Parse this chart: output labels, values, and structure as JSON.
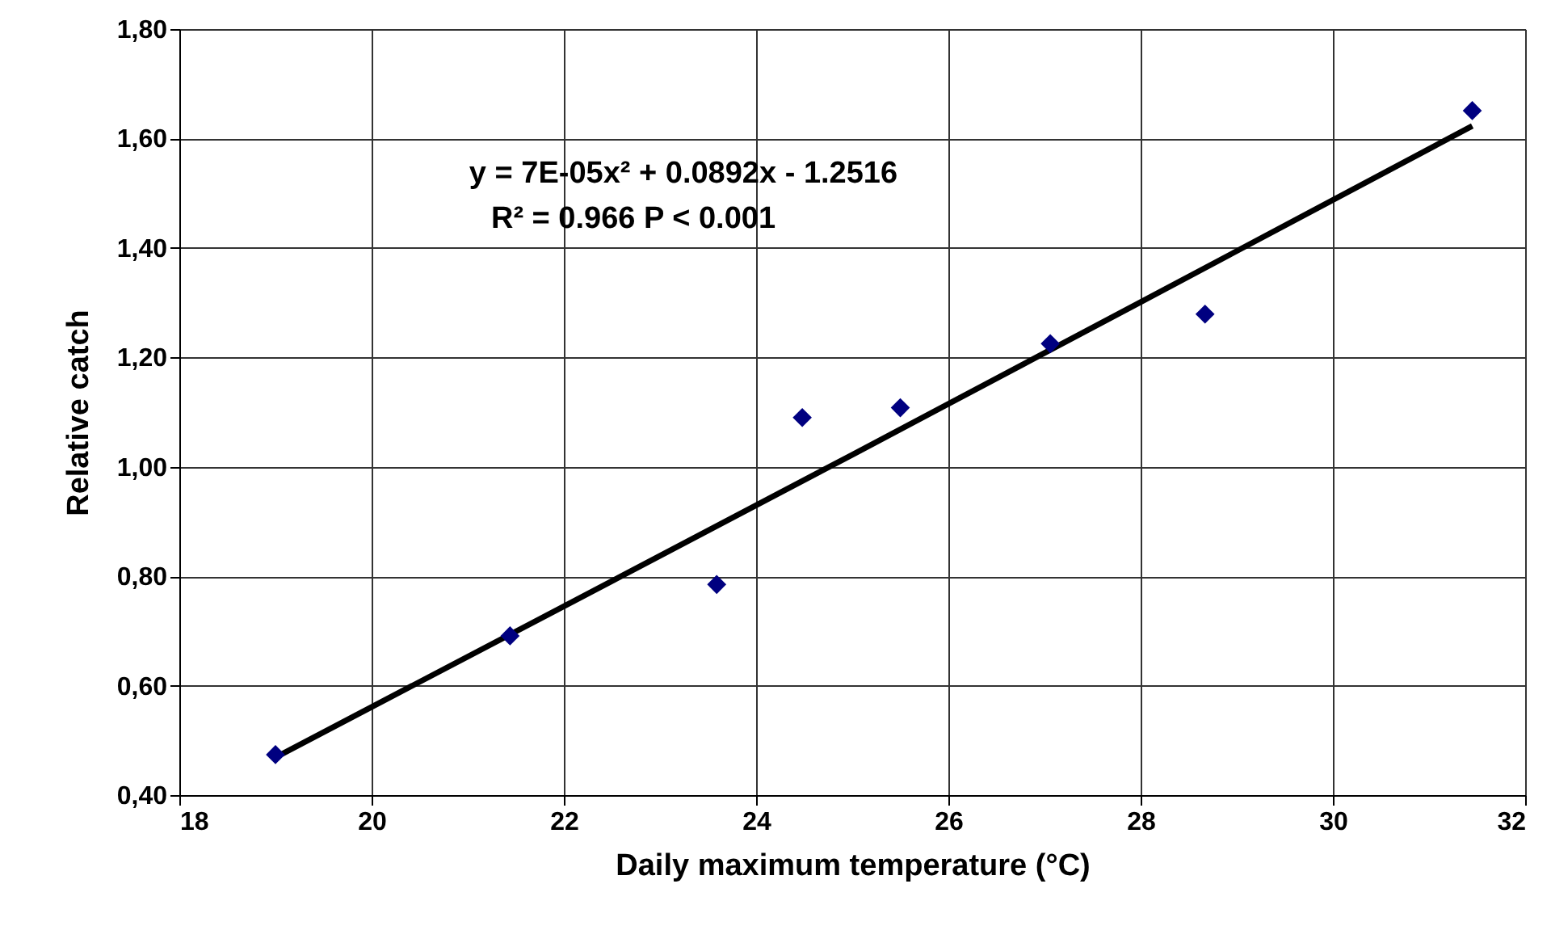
{
  "chart_data": {
    "type": "scatter",
    "xlabel": "Daily maximum temperature (°C)",
    "ylabel": "Relative catch",
    "xlim": [
      18,
      32
    ],
    "xticks": [
      18,
      20,
      22,
      24,
      26,
      28,
      30,
      32
    ],
    "ylim": [
      0.4,
      1.8
    ],
    "yticks": [
      {
        "value": 0.4,
        "label": "0,40"
      },
      {
        "value": 0.6,
        "label": "0,60"
      },
      {
        "value": 0.8,
        "label": "0,80"
      },
      {
        "value": 1.0,
        "label": "1,00"
      },
      {
        "value": 1.2,
        "label": "1,20"
      },
      {
        "value": 1.4,
        "label": "1,40"
      },
      {
        "value": 1.6,
        "label": "1,60"
      },
      {
        "value": 1.8,
        "label": "1,80"
      }
    ],
    "grid": true,
    "series": [
      {
        "color": "#000080",
        "marker": "diamond",
        "x": [
          19.0,
          21.44,
          23.59,
          24.48,
          25.5,
          27.06,
          28.67,
          31.45
        ],
        "values": [
          0.474,
          0.691,
          0.785,
          1.09,
          1.108,
          1.225,
          1.279,
          1.651
        ]
      },
      {
        "type": "line",
        "color": "#000000",
        "line_style": "solid",
        "marker": "none",
        "x": [
          19.0,
          22.0,
          25.0,
          28.0,
          31.45
        ],
        "values": [
          0.469,
          0.745,
          1.022,
          1.301,
          1.623
        ]
      }
    ],
    "annotations": [
      "y = 7E-05x² + 0.0892x - 1.2516",
      "R² = 0.966 P < 0.001"
    ]
  }
}
